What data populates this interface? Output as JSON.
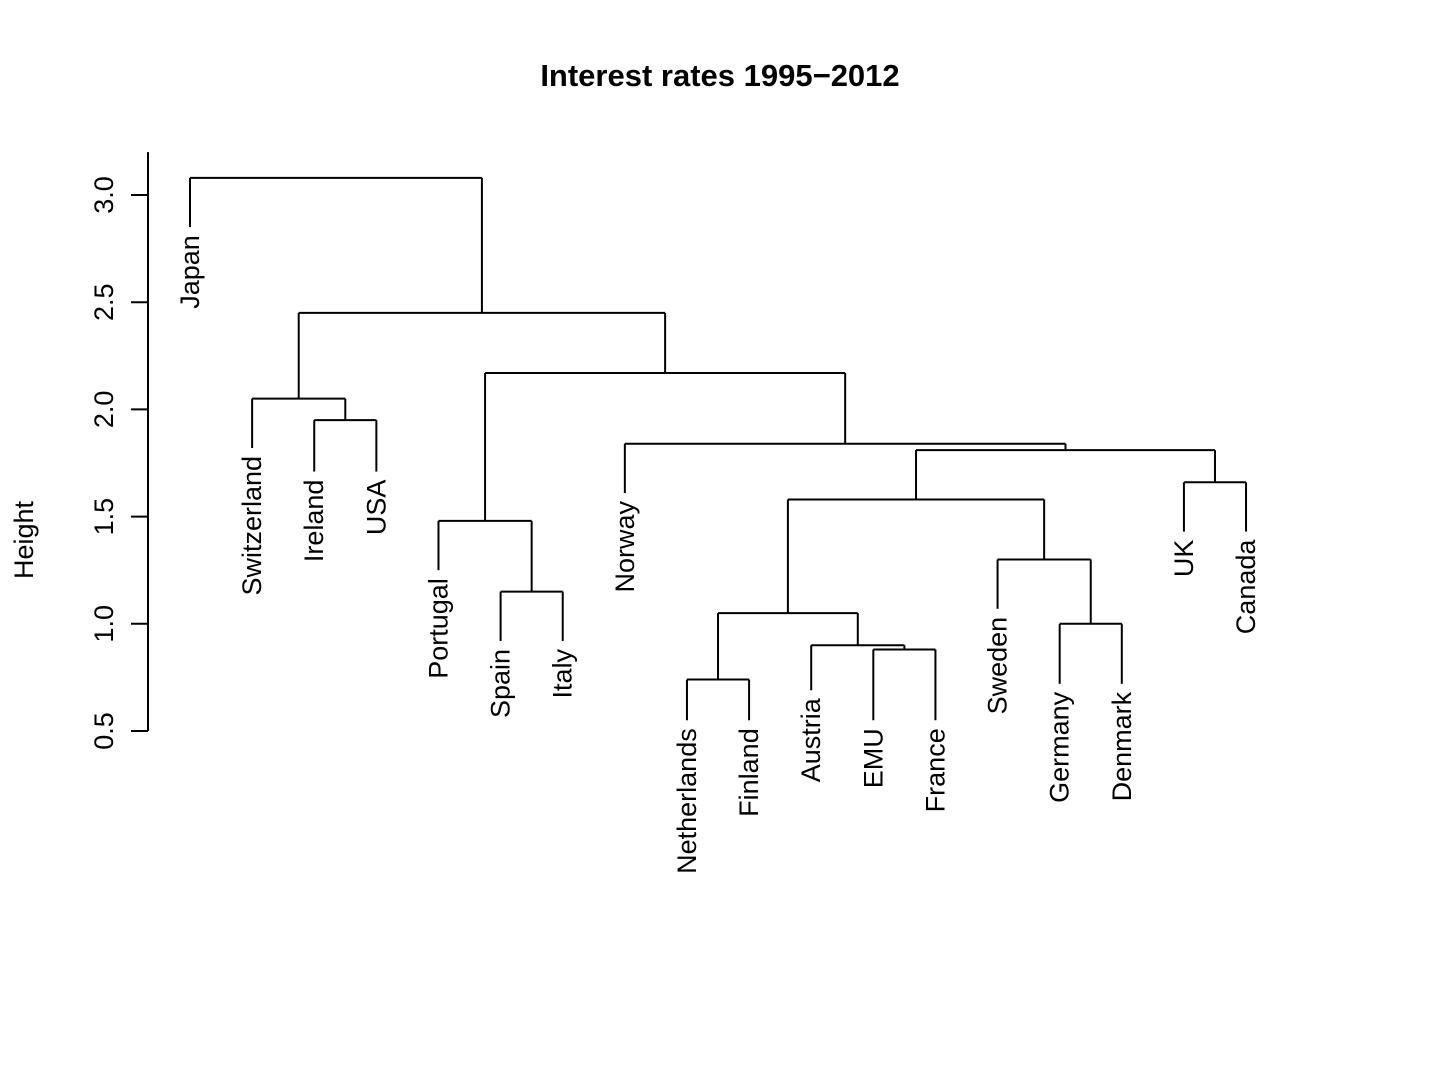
{
  "chart_data": {
    "type": "dendrogram",
    "title": "Interest rates 1995−2012",
    "ylabel": "Height",
    "xlabel": "",
    "ylim": [
      0.5,
      3.0
    ],
    "yticks": [
      0.5,
      1.0,
      1.5,
      2.0,
      2.5,
      3.0
    ],
    "ytick_labels": [
      "0.5",
      "1.0",
      "1.5",
      "2.0",
      "2.5",
      "3.0"
    ],
    "line_color": "#000000",
    "leaves": [
      {
        "label": "Japan",
        "label_top": 2.85
      },
      {
        "label": "Switzerland",
        "label_top": 1.82
      },
      {
        "label": "Ireland",
        "label_top": 1.71
      },
      {
        "label": "USA",
        "label_top": 1.71
      },
      {
        "label": "Portugal",
        "label_top": 1.25
      },
      {
        "label": "Spain",
        "label_top": 0.92
      },
      {
        "label": "Italy",
        "label_top": 0.92
      },
      {
        "label": "Norway",
        "label_top": 1.61
      },
      {
        "label": "Netherlands",
        "label_top": 0.55
      },
      {
        "label": "Finland",
        "label_top": 0.55
      },
      {
        "label": "Austria",
        "label_top": 0.69
      },
      {
        "label": "EMU",
        "label_top": 0.55
      },
      {
        "label": "France",
        "label_top": 0.55
      },
      {
        "label": "Sweden",
        "label_top": 1.07
      },
      {
        "label": "Germany",
        "label_top": 0.72
      },
      {
        "label": "Denmark",
        "label_top": 0.72
      },
      {
        "label": "UK",
        "label_top": 1.43
      },
      {
        "label": "Canada",
        "label_top": 1.43
      }
    ],
    "merges": [
      {
        "left": "Spain",
        "right": "Italy",
        "height": 1.15,
        "id": "m1"
      },
      {
        "left": "Portugal",
        "right": "m1",
        "height": 1.48,
        "id": "m2"
      },
      {
        "left": "Ireland",
        "right": "USA",
        "height": 1.95,
        "id": "m3"
      },
      {
        "left": "Switzerland",
        "right": "m3",
        "height": 2.05,
        "id": "m4"
      },
      {
        "left": "Netherlands",
        "right": "Finland",
        "height": 0.74,
        "id": "m5"
      },
      {
        "left": "EMU",
        "right": "France",
        "height": 0.88,
        "id": "m6"
      },
      {
        "left": "Austria",
        "right": "m6",
        "height": 0.9,
        "id": "m7"
      },
      {
        "left": "m5",
        "right": "m7",
        "height": 1.05,
        "id": "m8"
      },
      {
        "left": "Germany",
        "right": "Denmark",
        "height": 1.0,
        "id": "m9"
      },
      {
        "left": "Sweden",
        "right": "m9",
        "height": 1.3,
        "id": "m10"
      },
      {
        "left": "m8",
        "right": "m10",
        "height": 1.58,
        "id": "m11"
      },
      {
        "left": "UK",
        "right": "Canada",
        "height": 1.66,
        "id": "m12"
      },
      {
        "left": "m11",
        "right": "m12",
        "height": 1.81,
        "id": "m13"
      },
      {
        "left": "Norway",
        "right": "m13",
        "height": 1.84,
        "id": "m14"
      },
      {
        "left": "m2",
        "right": "m14",
        "height": 2.17,
        "id": "m15"
      },
      {
        "left": "m4",
        "right": "m15",
        "height": 2.45,
        "id": "m16"
      },
      {
        "left": "Japan",
        "right": "m16",
        "height": 3.08,
        "id": "m17"
      }
    ]
  }
}
